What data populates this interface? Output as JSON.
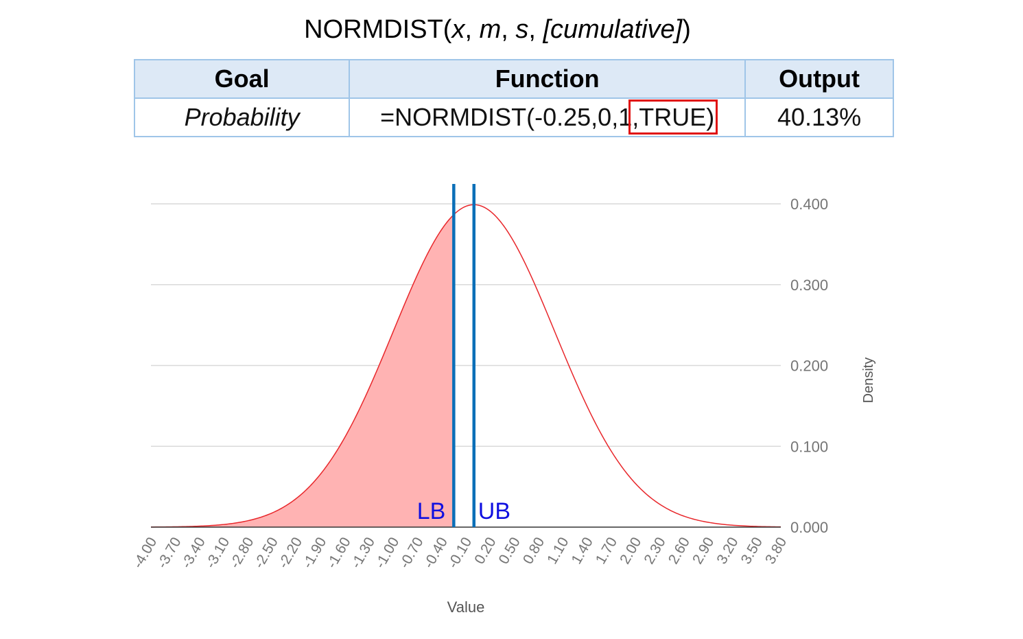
{
  "header": {
    "title_prefix": "NORMDIST(",
    "arg_x": "x",
    "sep1": ", ",
    "arg_m": "m",
    "sep2": ", ",
    "arg_s": "s",
    "sep3": ", ",
    "arg_cumulative": "[cumulative]",
    "title_suffix": ")"
  },
  "table": {
    "headers": [
      "Goal",
      "Function",
      "Output"
    ],
    "row": {
      "goal": "Probability",
      "function_prefix": "=NORMDIST(-0.25,0,1",
      "function_highlight": ",TRUE)",
      "output": "40.13%"
    }
  },
  "chart_data": {
    "type": "area",
    "distribution": "normal",
    "mean": 0,
    "sd": 1,
    "xlabel": "Value",
    "ylabel": "Density",
    "xlim": [
      -4.0,
      3.8
    ],
    "x_ticks": [
      "-4.00",
      "-3.70",
      "-3.40",
      "-3.10",
      "-2.80",
      "-2.50",
      "-2.20",
      "-1.90",
      "-1.60",
      "-1.30",
      "-1.00",
      "-0.70",
      "-0.40",
      "-0.10",
      "0.20",
      "0.50",
      "0.80",
      "1.10",
      "1.40",
      "1.70",
      "2.00",
      "2.30",
      "2.60",
      "2.90",
      "3.20",
      "3.50",
      "3.80"
    ],
    "ylim": [
      0,
      0.4
    ],
    "y_ticks": [
      "0.000",
      "0.100",
      "0.200",
      "0.300",
      "0.400"
    ],
    "y_axis_side": "right",
    "grid": true,
    "shaded_region": {
      "from": -4.0,
      "to": -0.25
    },
    "lines": [
      {
        "label": "LB",
        "x": -0.25
      },
      {
        "label": "UB",
        "x": 0.0
      }
    ],
    "colors": {
      "curve": "#e8262a",
      "fill": "#ffb3b3",
      "bounds": "#0b6fb8",
      "bound_labels": "#1010e0",
      "grid": "#d9d9d9",
      "ticks": "#757575"
    }
  }
}
